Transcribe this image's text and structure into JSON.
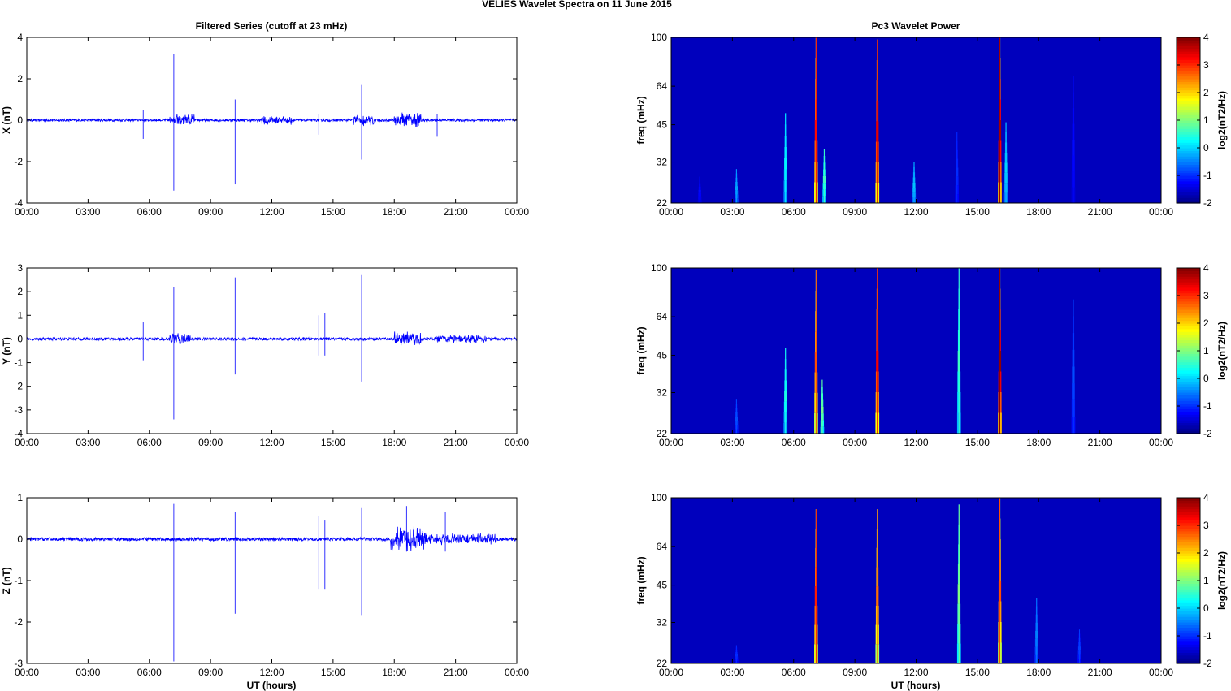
{
  "figure": {
    "title": "VELIES Wavelet Spectra on 11 June      2015",
    "left_title": "Filtered Series (cutoff at 23 mHz)",
    "right_title": "Pc3 Wavelet Power",
    "xlabel": "UT (hours)",
    "freq_label": "freq (mHz)"
  },
  "chart_data": [
    {
      "type": "line",
      "component": "X",
      "ylabel": "X (nT)",
      "xlim": [
        0,
        24
      ],
      "ylim": [
        -4,
        4
      ],
      "yticks": [
        -4,
        -2,
        0,
        2,
        4
      ],
      "xticks": [
        0,
        3,
        6,
        9,
        12,
        15,
        18,
        21,
        24
      ],
      "xtick_labels": [
        "00:00",
        "03:00",
        "06:00",
        "09:00",
        "12:00",
        "15:00",
        "18:00",
        "21:00",
        "00:00"
      ],
      "color": "#0000ff",
      "baseline_noise": 0.06,
      "spikes": [
        {
          "t": 7.2,
          "max": 3.2,
          "min": -3.4
        },
        {
          "t": 10.2,
          "max": 1.0,
          "min": -3.1
        },
        {
          "t": 16.4,
          "max": 1.7,
          "min": -1.9
        },
        {
          "t": 5.7,
          "max": 0.5,
          "min": -0.9
        },
        {
          "t": 14.3,
          "max": 0.3,
          "min": -0.7
        },
        {
          "t": 20.1,
          "max": 0.3,
          "min": -0.8
        }
      ],
      "bursts": [
        {
          "t0": 7.0,
          "t1": 8.2,
          "amp": 0.35
        },
        {
          "t0": 11.4,
          "t1": 13.0,
          "amp": 0.25
        },
        {
          "t0": 18.0,
          "t1": 19.3,
          "amp": 0.4
        },
        {
          "t0": 16.0,
          "t1": 17.0,
          "amp": 0.3
        }
      ]
    },
    {
      "type": "line",
      "component": "Y",
      "ylabel": "Y (nT)",
      "xlim": [
        0,
        24
      ],
      "ylim": [
        -4,
        3
      ],
      "yticks": [
        -4,
        -3,
        -2,
        -1,
        0,
        1,
        2,
        3
      ],
      "xticks": [
        0,
        3,
        6,
        9,
        12,
        15,
        18,
        21,
        24
      ],
      "xtick_labels": [
        "00:00",
        "03:00",
        "06:00",
        "09:00",
        "12:00",
        "15:00",
        "18:00",
        "21:00",
        "00:00"
      ],
      "color": "#0000ff",
      "baseline_noise": 0.06,
      "spikes": [
        {
          "t": 7.2,
          "max": 2.2,
          "min": -3.4
        },
        {
          "t": 10.2,
          "max": 2.6,
          "min": -1.5
        },
        {
          "t": 14.3,
          "max": 1.0,
          "min": -0.7
        },
        {
          "t": 14.6,
          "max": 1.1,
          "min": -0.7
        },
        {
          "t": 16.4,
          "max": 2.7,
          "min": -1.8
        },
        {
          "t": 5.7,
          "max": 0.7,
          "min": -0.9
        }
      ],
      "bursts": [
        {
          "t0": 7.0,
          "t1": 8.0,
          "amp": 0.3
        },
        {
          "t0": 18.0,
          "t1": 19.3,
          "amp": 0.35
        },
        {
          "t0": 20.0,
          "t1": 22.5,
          "amp": 0.2
        }
      ]
    },
    {
      "type": "line",
      "component": "Z",
      "ylabel": "Z (nT)",
      "xlim": [
        0,
        24
      ],
      "ylim": [
        -3,
        1
      ],
      "yticks": [
        -3,
        -2,
        -1,
        0,
        1
      ],
      "xticks": [
        0,
        3,
        6,
        9,
        12,
        15,
        18,
        21,
        24
      ],
      "xtick_labels": [
        "00:00",
        "03:00",
        "06:00",
        "09:00",
        "12:00",
        "15:00",
        "18:00",
        "21:00",
        "00:00"
      ],
      "color": "#0000ff",
      "baseline_noise": 0.04,
      "spikes": [
        {
          "t": 7.2,
          "max": 0.85,
          "min": -2.95
        },
        {
          "t": 10.2,
          "max": 0.65,
          "min": -1.8
        },
        {
          "t": 14.3,
          "max": 0.55,
          "min": -1.2
        },
        {
          "t": 14.6,
          "max": 0.45,
          "min": -1.2
        },
        {
          "t": 16.4,
          "max": 0.75,
          "min": -1.85
        },
        {
          "t": 18.6,
          "max": 0.8,
          "min": -0.3
        },
        {
          "t": 20.5,
          "max": 0.65,
          "min": -0.3
        }
      ],
      "bursts": [
        {
          "t0": 17.8,
          "t1": 19.5,
          "amp": 0.35
        },
        {
          "t0": 19.5,
          "t1": 23.0,
          "amp": 0.15
        }
      ]
    },
    {
      "type": "heatmap",
      "component": "X",
      "ylabel": "freq (mHz)",
      "yticks": [
        22,
        32,
        45,
        64,
        100
      ],
      "xlim": [
        0,
        24
      ],
      "xtick_labels": [
        "00:00",
        "03:00",
        "06:00",
        "09:00",
        "12:00",
        "15:00",
        "18:00",
        "21:00",
        "00:00"
      ],
      "colorbar_label": "log2(nT2/Hz)",
      "clim": [
        -2,
        4
      ],
      "cticks": [
        -2,
        -1,
        0,
        1,
        2,
        3,
        4
      ],
      "events": [
        {
          "t": 1.4,
          "top": 28,
          "level": -1.2
        },
        {
          "t": 3.2,
          "top": 30,
          "level": -0.3
        },
        {
          "t": 5.6,
          "top": 50,
          "level": 0.2
        },
        {
          "t": 7.1,
          "top": 100,
          "level": 3.2
        },
        {
          "t": 7.5,
          "top": 36,
          "level": 0.6
        },
        {
          "t": 10.1,
          "top": 98,
          "level": 3.4
        },
        {
          "t": 11.9,
          "top": 32,
          "level": -0.1
        },
        {
          "t": 14.0,
          "top": 42,
          "level": -1.0
        },
        {
          "t": 16.1,
          "top": 100,
          "level": 3.8
        },
        {
          "t": 16.4,
          "top": 46,
          "level": 0.0
        },
        {
          "t": 19.7,
          "top": 70,
          "level": -1.2
        }
      ]
    },
    {
      "type": "heatmap",
      "component": "Y",
      "ylabel": "freq (mHz)",
      "yticks": [
        22,
        32,
        45,
        64,
        100
      ],
      "xlim": [
        0,
        24
      ],
      "xtick_labels": [
        "00:00",
        "03:00",
        "06:00",
        "09:00",
        "12:00",
        "15:00",
        "18:00",
        "21:00",
        "00:00"
      ],
      "colorbar_label": "log2(nT2/Hz)",
      "clim": [
        -2,
        4
      ],
      "cticks": [
        -2,
        -1,
        0,
        1,
        2,
        3,
        4
      ],
      "events": [
        {
          "t": 3.2,
          "top": 30,
          "level": -0.8
        },
        {
          "t": 5.6,
          "top": 48,
          "level": 0.4
        },
        {
          "t": 7.1,
          "top": 98,
          "level": 2.8
        },
        {
          "t": 7.4,
          "top": 36,
          "level": 0.9
        },
        {
          "t": 10.1,
          "top": 100,
          "level": 3.3
        },
        {
          "t": 14.1,
          "top": 100,
          "level": 0.6
        },
        {
          "t": 16.1,
          "top": 100,
          "level": 3.9
        },
        {
          "t": 19.7,
          "top": 75,
          "level": -0.8
        }
      ]
    },
    {
      "type": "heatmap",
      "component": "Z",
      "ylabel": "freq (mHz)",
      "yticks": [
        22,
        32,
        45,
        64,
        100
      ],
      "xlim": [
        0,
        24
      ],
      "xtick_labels": [
        "00:00",
        "03:00",
        "06:00",
        "09:00",
        "12:00",
        "15:00",
        "18:00",
        "21:00",
        "00:00"
      ],
      "colorbar_label": "log2(nT2/Hz)",
      "clim": [
        -2,
        4
      ],
      "cticks": [
        -2,
        -1,
        0,
        1,
        2,
        3,
        4
      ],
      "events": [
        {
          "t": 3.2,
          "top": 26,
          "level": -1.0
        },
        {
          "t": 7.1,
          "top": 90,
          "level": 3.1
        },
        {
          "t": 10.1,
          "top": 90,
          "level": 2.6
        },
        {
          "t": 14.1,
          "top": 94,
          "level": 1.0
        },
        {
          "t": 16.1,
          "top": 100,
          "level": 2.8
        },
        {
          "t": 17.9,
          "top": 40,
          "level": -0.5
        },
        {
          "t": 20.0,
          "top": 30,
          "level": -0.9
        }
      ]
    }
  ]
}
